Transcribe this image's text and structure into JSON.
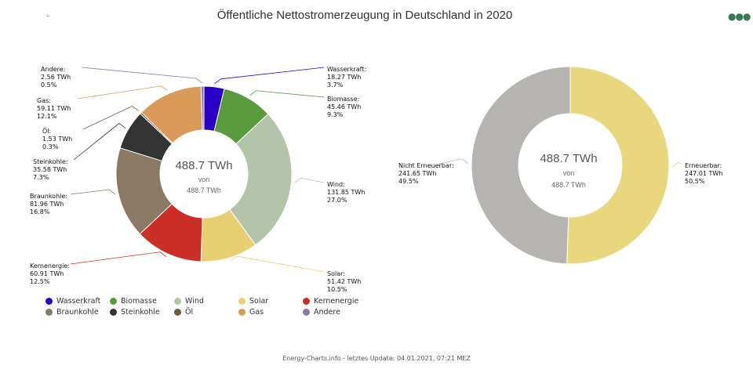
{
  "title": "Öffentliche Nettostromerzeugung in Deutschland in 2020",
  "menu_icon": "three-dots-icon",
  "footer": "Energy-Charts.info - letztes Update: 04.01.2021, 07:21 MEZ",
  "chart_data": [
    {
      "type": "pie",
      "variant": "donut",
      "center_value": "488.7 TWh",
      "center_of": "von",
      "center_total": "488.7 TWh",
      "unit": "TWh",
      "legend_position": "bottom",
      "slices": [
        {
          "name": "Wasserkraft",
          "label": "Wasserkraft:",
          "value": 18.27,
          "value_text": "18.27 TWh",
          "percent_text": "3.7%",
          "color": "#2a00c8"
        },
        {
          "name": "Biomasse",
          "label": "Biomasse:",
          "value": 45.46,
          "value_text": "45.46 TWh",
          "percent_text": "9.3%",
          "color": "#5a9a3e"
        },
        {
          "name": "Wind",
          "label": "Wind:",
          "value": 131.85,
          "value_text": "131.85 TWh",
          "percent_text": "27.0%",
          "color": "#b4c4a8"
        },
        {
          "name": "Solar",
          "label": "Solar:",
          "value": 51.42,
          "value_text": "51.42 TWh",
          "percent_text": "10.5%",
          "color": "#e8cf74"
        },
        {
          "name": "Kernenergie",
          "label": "Kernenergie:",
          "value": 60.91,
          "value_text": "60.91 TWh",
          "percent_text": "12.5%",
          "color": "#cc2e28"
        },
        {
          "name": "Braunkohle",
          "label": "Braunkohle:",
          "value": 81.96,
          "value_text": "81.96 TWh",
          "percent_text": "16.8%",
          "color": "#8a7a64"
        },
        {
          "name": "Steinkohle",
          "label": "Steinkohle:",
          "value": 35.58,
          "value_text": "35.58 TWh",
          "percent_text": "7.3%",
          "color": "#333333"
        },
        {
          "name": "Öl",
          "label": "Öl:",
          "value": 1.53,
          "value_text": "1.53 TWh",
          "percent_text": "0.3%",
          "color": "#6e5a42"
        },
        {
          "name": "Gas",
          "label": "Gas:",
          "value": 59.11,
          "value_text": "59.11 TWh",
          "percent_text": "12.1%",
          "color": "#d99a5a"
        },
        {
          "name": "Andere",
          "label": "Andere:",
          "value": 2.56,
          "value_text": "2.56 TWh",
          "percent_text": "0.5%",
          "color": "#8a78a8"
        }
      ]
    },
    {
      "type": "pie",
      "variant": "donut",
      "center_value": "488.7 TWh",
      "center_of": "von",
      "center_total": "488.7 TWh",
      "unit": "TWh",
      "slices": [
        {
          "name": "Erneuerbar",
          "label": "Erneuerbar:",
          "value": 247.01,
          "value_text": "247.01 TWh",
          "percent_text": "50.5%",
          "color": "#e8d77c"
        },
        {
          "name": "Nicht Erneuerbar",
          "label": "Nicht Erneuerbar:",
          "value": 241.65,
          "value_text": "241.65 TWh",
          "percent_text": "49.5%",
          "color": "#b5b4b0"
        }
      ]
    }
  ]
}
